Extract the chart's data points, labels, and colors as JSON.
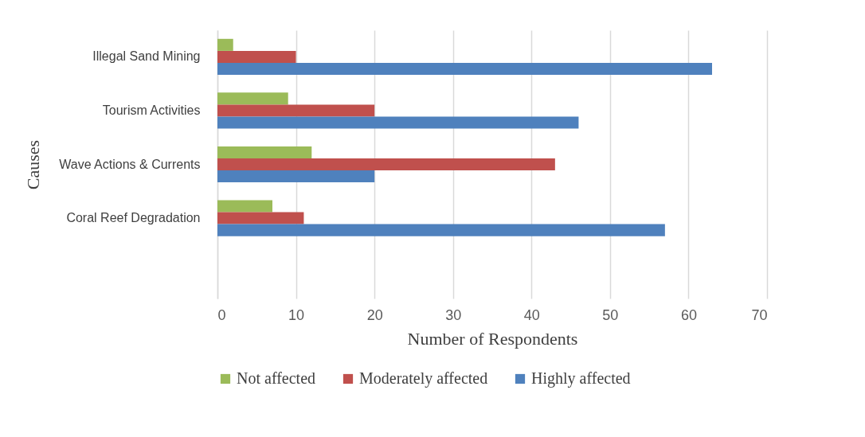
{
  "chart_data": {
    "type": "bar",
    "orientation": "horizontal",
    "ylabel": "Causes",
    "xlabel": "Number of Respondents",
    "categories": [
      "Illegal Sand Mining",
      "Tourism Activities",
      "Wave Actions & Currents",
      "Coral Reef Degradation",
      null
    ],
    "series": [
      {
        "name": "Not affected",
        "color": "#9bbb59",
        "values": [
          2,
          9,
          12,
          7,
          null
        ]
      },
      {
        "name": "Moderately affected",
        "color": "#c0504d",
        "values": [
          10,
          20,
          43,
          11,
          null
        ]
      },
      {
        "name": "Highly affected",
        "color": "#4f81bd",
        "values": [
          63,
          46,
          20,
          57,
          null
        ]
      }
    ],
    "xlim": [
      0,
      70
    ],
    "xticks": [
      0,
      10,
      20,
      30,
      40,
      50,
      60,
      70
    ],
    "grid": "x",
    "legend": "bottom"
  }
}
